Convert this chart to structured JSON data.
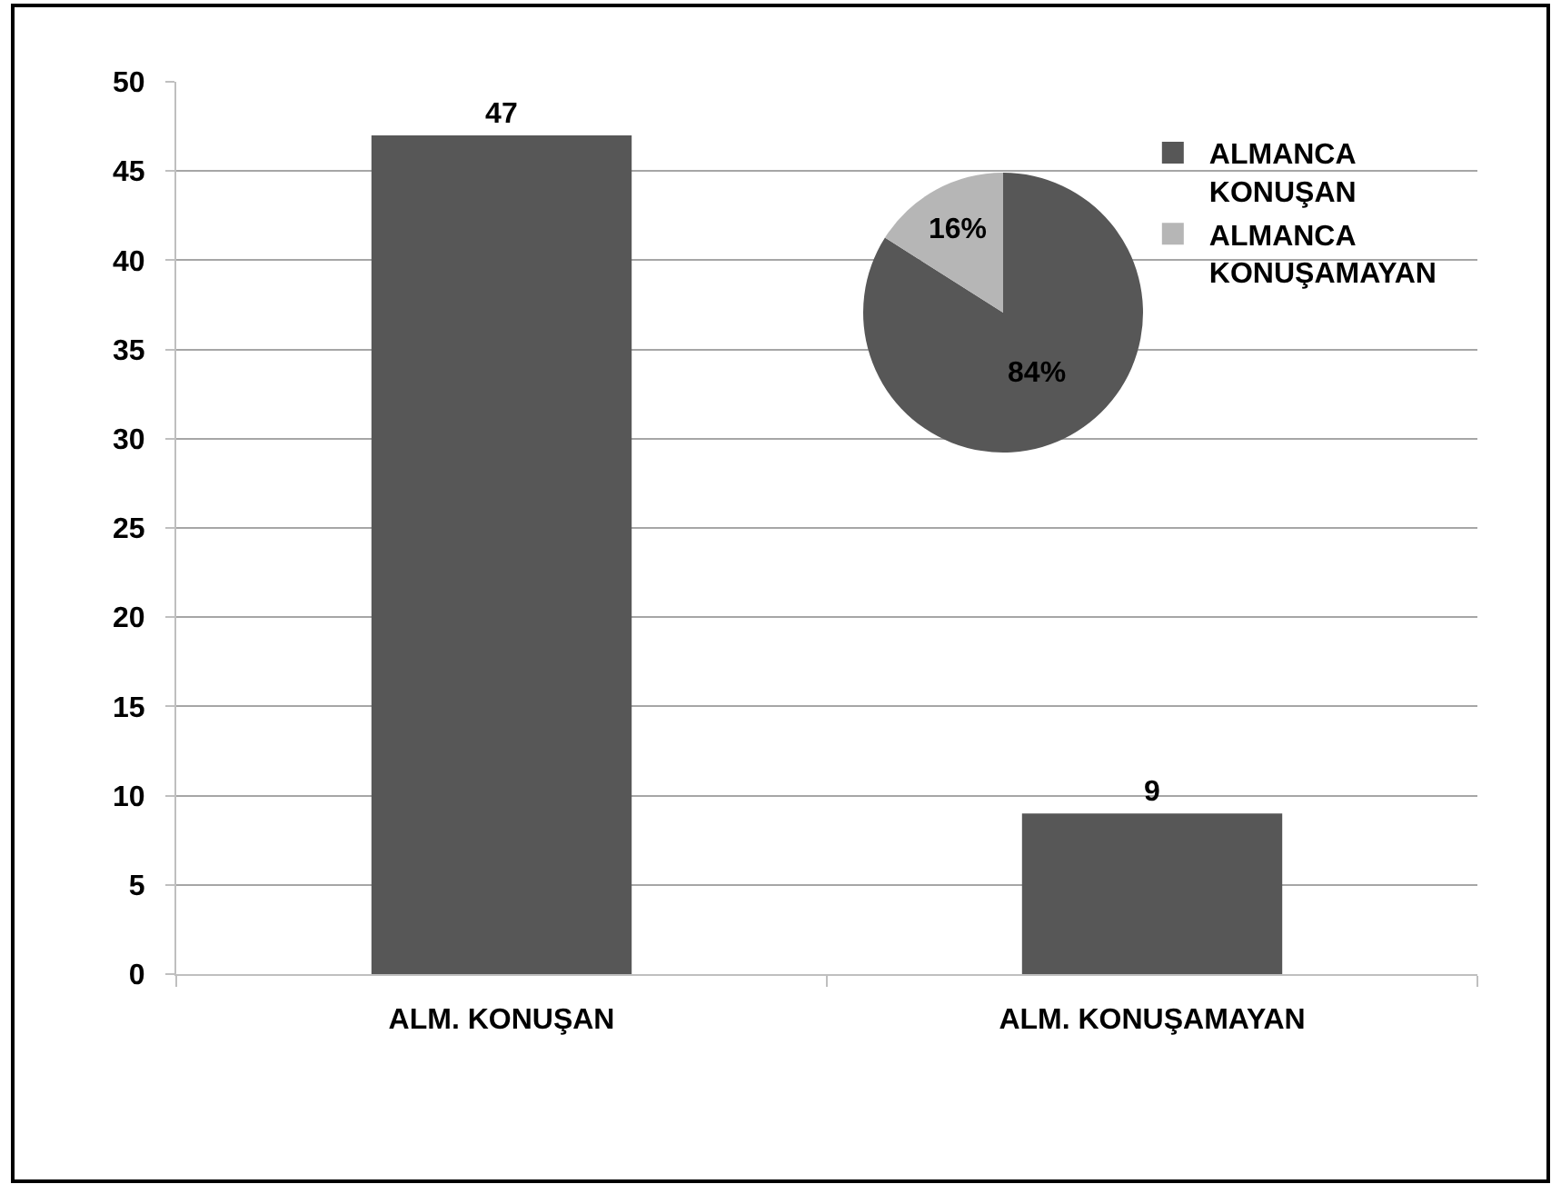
{
  "chart_data": [
    {
      "type": "bar",
      "categories": [
        "ALM. KONUŞAN",
        "ALM. KONUŞAMAYAN"
      ],
      "values": [
        47,
        9
      ],
      "color": "#575757",
      "ylim": [
        0,
        50
      ],
      "yticks": [
        0,
        5,
        10,
        15,
        20,
        25,
        30,
        35,
        40,
        45,
        50
      ],
      "grid": "y",
      "data_labels": true
    },
    {
      "type": "pie",
      "categories": [
        "ALMANCA KONUŞAN",
        "ALMANCA KONUŞAMAYAN"
      ],
      "values": [
        84,
        16
      ],
      "colors": [
        "#575757",
        "#b6b6b6"
      ],
      "value_labels": [
        "84%",
        "16%"
      ],
      "legend": "right"
    }
  ]
}
